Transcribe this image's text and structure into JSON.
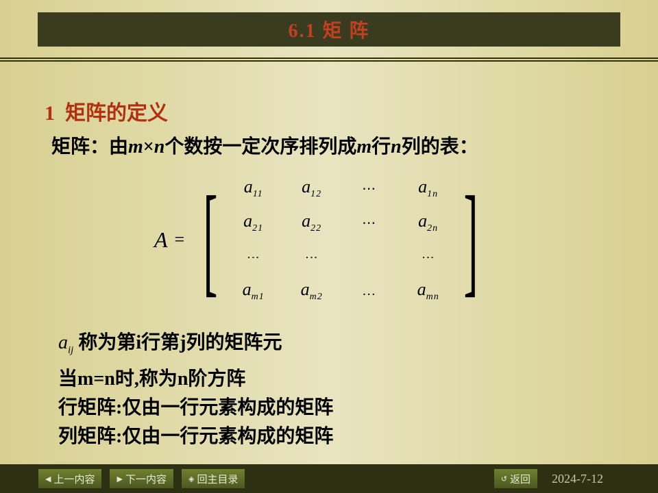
{
  "header": {
    "title": "6.1   矩    阵",
    "title_color": "#c04020",
    "band_color": "#3a3c20"
  },
  "section": {
    "number": "1",
    "heading": "矩阵的定义",
    "heading_color": "#b03010",
    "definition_prefix": "矩阵：由",
    "definition_mid1": "个数按一定次序排列成",
    "definition_mid2": "行",
    "definition_suffix": "列的表：",
    "var_m": "m",
    "var_n": "n",
    "times": "×"
  },
  "matrix": {
    "lhs": "A",
    "eq": "=",
    "cells": {
      "r1": [
        "a_11",
        "a_12",
        "⋯",
        "a_1n"
      ],
      "r2": [
        "a_21",
        "a_22",
        "⋯",
        "a_2n"
      ],
      "r3": [
        "⋮",
        "⋮",
        "",
        "⋮"
      ],
      "r4": [
        "a_m1",
        "a_m2",
        "…",
        "a_mn"
      ]
    },
    "element_symbol": "a",
    "subscripts": {
      "11": "11",
      "12": "12",
      "1n": "1n",
      "21": "21",
      "22": "22",
      "2n": "2n",
      "m1": "m1",
      "m2": "m2",
      "mn": "mn"
    },
    "hdots": "⋯",
    "hdots2": "…",
    "vdots": "⋮"
  },
  "notes": {
    "aij_a": "a",
    "aij_sub": "ij",
    "line1_rest": " 称为第i行第j列的矩阵元",
    "line2": "当m=n时,称为n阶方阵",
    "line3": "行矩阵:仅由一行元素构成的矩阵",
    "line4": "列矩阵:仅由一行元素构成的矩阵"
  },
  "footer": {
    "buttons": {
      "prev": "上一内容",
      "next": "下一内容",
      "home": "回主目录",
      "back": "返回"
    },
    "icons": {
      "prev": "◀",
      "next": "▶",
      "home": "◈",
      "back": "↺"
    },
    "date": "2024-7-12",
    "bg_color": "#2e3014",
    "btn_text_color": "#e8e8d0"
  },
  "page_bg_gradient": [
    "#d8d090",
    "#e8e4c0",
    "#d8d090"
  ]
}
